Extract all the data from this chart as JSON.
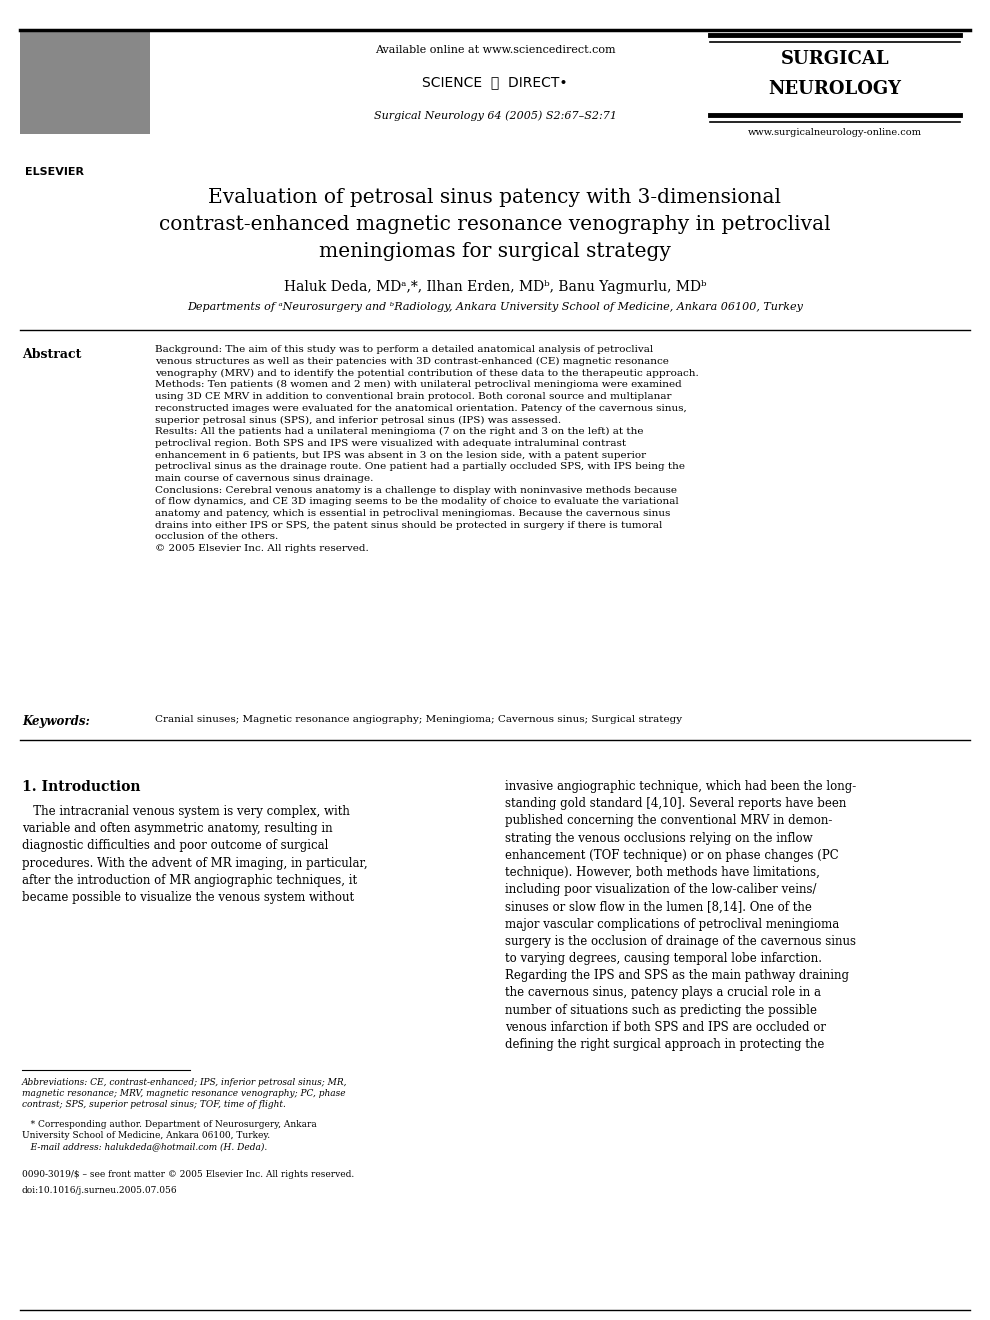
{
  "bg_color": "#ffffff",
  "header": {
    "available_online": "Available online at www.sciencedirect.com",
    "science_direct": "SCIENCE  ⓓ  DIRECT•",
    "journal_ref": "Surgical Neurology 64 (2005) S2:67–S2:71",
    "surgical_neurology_line1": "SURGICAL",
    "surgical_neurology_line2": "NEUROLOGY",
    "journal_website": "www.surgicalneurology-online.com"
  },
  "title_line1": "Evaluation of petrosal sinus patency with 3-dimensional",
  "title_line2": "contrast-enhanced magnetic resonance venography in petroclival",
  "title_line3": "meningiomas for surgical strategy",
  "authors": "Haluk Deda, MDᵃ,*, Ilhan Erden, MDᵇ, Banu Yagmurlu, MDᵇ",
  "affiliations": "Departments of ᵃNeurosurgery and ᵇRadiology, Ankara University School of Medicine, Ankara 06100, Turkey",
  "abstract_label": "Abstract",
  "abstract_text": "Background: The aim of this study was to perform a detailed anatomical analysis of petroclival\nvenous structures as well as their patencies with 3D contrast-enhanced (CE) magnetic resonance\nvenography (MRV) and to identify the potential contribution of these data to the therapeutic approach.\nMethods: Ten patients (8 women and 2 men) with unilateral petroclival meningioma were examined\nusing 3D CE MRV in addition to conventional brain protocol. Both coronal source and multiplanar\nreconstructed images were evaluated for the anatomical orientation. Patency of the cavernous sinus,\nsuperior petrosal sinus (SPS), and inferior petrosal sinus (IPS) was assessed.\nResults: All the patients had a unilateral meningioma (7 on the right and 3 on the left) at the\npetroclival region. Both SPS and IPS were visualized with adequate intraluminal contrast\nenhancement in 6 patients, but IPS was absent in 3 on the lesion side, with a patent superior\npetroclival sinus as the drainage route. One patient had a partially occluded SPS, with IPS being the\nmain course of cavernous sinus drainage.\nConclusions: Cerebral venous anatomy is a challenge to display with noninvasive methods because\nof flow dynamics, and CE 3D imaging seems to be the modality of choice to evaluate the variational\nanatomy and patency, which is essential in petroclival meningiomas. Because the cavernous sinus\ndrains into either IPS or SPS, the patent sinus should be protected in surgery if there is tumoral\nocclusion of the others.\n© 2005 Elsevier Inc. All rights reserved.",
  "keywords_label": "Keywords:",
  "keywords": "Cranial sinuses; Magnetic resonance angiography; Meningioma; Cavernous sinus; Surgical strategy",
  "section1_title": "1. Introduction",
  "section1_col1": "   The intracranial venous system is very complex, with\nvariable and often asymmetric anatomy, resulting in\ndiagnostic difficulties and poor outcome of surgical\nprocedures. With the advent of MR imaging, in particular,\nafter the introduction of MR angiographic techniques, it\nbecame possible to visualize the venous system without",
  "section1_col2": "invasive angiographic technique, which had been the long-\nstanding gold standard [4,10]. Several reports have been\npublished concerning the conventional MRV in demon-\nstrating the venous occlusions relying on the inflow\nenhancement (TOF technique) or on phase changes (PC\ntechnique). However, both methods have limitations,\nincluding poor visualization of the low-caliber veins/\nsinuses or slow flow in the lumen [8,14]. One of the\nmajor vascular complications of petroclival meningioma\nsurgery is the occlusion of drainage of the cavernous sinus\nto varying degrees, causing temporal lobe infarction.\nRegarding the IPS and SPS as the main pathway draining\nthe cavernous sinus, patency plays a crucial role in a\nnumber of situations such as predicting the possible\nvenous infarction if both SPS and IPS are occluded or\ndefining the right surgical approach in protecting the",
  "footnote_abbrev": "Abbreviations: CE, contrast-enhanced; IPS, inferior petrosal sinus; MR,\nmagnetic resonance; MRV, magnetic resonance venography; PC, phase\ncontrast; SPS, superior petrosal sinus; TOF, time of flight.",
  "footnote_corresponding": "   * Corresponding author. Department of Neurosurgery, Ankara\nUniversity School of Medicine, Ankara 06100, Turkey.",
  "footnote_email": "   E-mail address: halukdeda@hotmail.com (H. Deda).",
  "footnote_issn": "0090-3019/$ – see front matter © 2005 Elsevier Inc. All rights reserved.",
  "footnote_doi": "doi:10.1016/j.surneu.2005.07.056"
}
